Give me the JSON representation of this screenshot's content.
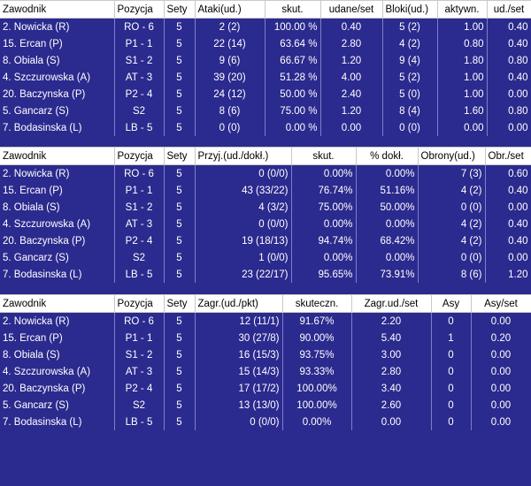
{
  "tables": [
    {
      "headers": [
        "Zawodnik",
        "Pozycja",
        "Sety",
        "Ataki(ud.)",
        "skut.",
        "udane/set",
        "Bloki(ud.)",
        "aktywn.",
        "ud./set"
      ],
      "rows": [
        [
          "2. Nowicka (R)",
          "RO - 6",
          "5",
          "2 (2)",
          "100.00 %",
          "0.40",
          "5 (2)",
          "1.00",
          "0.40"
        ],
        [
          "15. Ercan (P)",
          "P1 - 1",
          "5",
          "22 (14)",
          "63.64 %",
          "2.80",
          "4 (2)",
          "0.80",
          "0.40"
        ],
        [
          "8. Obiala (S)",
          "S1 - 2",
          "5",
          "9 (6)",
          "66.67 %",
          "1.20",
          "9 (4)",
          "1.80",
          "0.80"
        ],
        [
          "4. Szczurowska (A)",
          "AT - 3",
          "5",
          "39 (20)",
          "51.28 %",
          "4.00",
          "5 (2)",
          "1.00",
          "0.40"
        ],
        [
          "20. Baczynska (P)",
          "P2 - 4",
          "5",
          "24 (12)",
          "50.00 %",
          "2.40",
          "5 (0)",
          "1.00",
          "0.00"
        ],
        [
          "5. Gancarz (S)",
          "S2",
          "5",
          "8 (6)",
          "75.00 %",
          "1.20",
          "8 (4)",
          "1.60",
          "0.80"
        ],
        [
          "7. Bodasinska (L)",
          "LB - 5",
          "5",
          "0 (0)",
          "0.00 %",
          "0.00",
          "0 (0)",
          "0.00",
          "0.00"
        ]
      ]
    },
    {
      "headers": [
        "Zawodnik",
        "Pozycja",
        "Sety",
        "Przyj.(ud./dokł.)",
        "skut.",
        "% dokł.",
        "Obrony(ud.)",
        "Obr./set"
      ],
      "rows": [
        [
          "2. Nowicka (R)",
          "RO - 6",
          "5",
          "0 (0/0)",
          "0.00%",
          "0.00%",
          "7 (3)",
          "0.60"
        ],
        [
          "15. Ercan (P)",
          "P1 - 1",
          "5",
          "43 (33/22)",
          "76.74%",
          "51.16%",
          "4 (2)",
          "0.40"
        ],
        [
          "8. Obiala (S)",
          "S1 - 2",
          "5",
          "4 (3/2)",
          "75.00%",
          "50.00%",
          "0 (0)",
          "0.00"
        ],
        [
          "4. Szczurowska (A)",
          "AT - 3",
          "5",
          "0 (0/0)",
          "0.00%",
          "0.00%",
          "4 (2)",
          "0.40"
        ],
        [
          "20. Baczynska (P)",
          "P2 - 4",
          "5",
          "19 (18/13)",
          "94.74%",
          "68.42%",
          "4 (2)",
          "0.40"
        ],
        [
          "5. Gancarz (S)",
          "S2",
          "5",
          "1 (0/0)",
          "0.00%",
          "0.00%",
          "0 (0)",
          "0.00"
        ],
        [
          "7. Bodasinska (L)",
          "LB - 5",
          "5",
          "23 (22/17)",
          "95.65%",
          "73.91%",
          "8 (6)",
          "1.20"
        ]
      ]
    },
    {
      "headers": [
        "Zawodnik",
        "Pozycja",
        "Sety",
        "Zagr.(ud./pkt)",
        "skuteczn.",
        "Zagr.ud./set",
        "Asy",
        "Asy/set"
      ],
      "rows": [
        [
          "2. Nowicka (R)",
          "RO - 6",
          "5",
          "12 (11/1)",
          "91.67%",
          "2.20",
          "0",
          "0.00"
        ],
        [
          "15. Ercan (P)",
          "P1 - 1",
          "5",
          "30 (27/8)",
          "90.00%",
          "5.40",
          "1",
          "0.20"
        ],
        [
          "8. Obiala (S)",
          "S1 - 2",
          "5",
          "16 (15/3)",
          "93.75%",
          "3.00",
          "0",
          "0.00"
        ],
        [
          "4. Szczurowska (A)",
          "AT - 3",
          "5",
          "15 (14/3)",
          "93.33%",
          "2.80",
          "0",
          "0.00"
        ],
        [
          "20. Baczynska (P)",
          "P2 - 4",
          "5",
          "17 (17/2)",
          "100.00%",
          "3.40",
          "0",
          "0.00"
        ],
        [
          "5. Gancarz (S)",
          "S2",
          "5",
          "13 (13/0)",
          "100.00%",
          "2.60",
          "0",
          "0.00"
        ],
        [
          "7. Bodasinska (L)",
          "LB - 5",
          "5",
          "0 (0/0)",
          "0.00%",
          "0.00",
          "0",
          "0.00"
        ]
      ]
    }
  ],
  "colors": {
    "background": "#2b2a8e",
    "header_background": "#ffffff",
    "cell_text": "#ffffff",
    "grid_line": "#7e7ecb"
  }
}
